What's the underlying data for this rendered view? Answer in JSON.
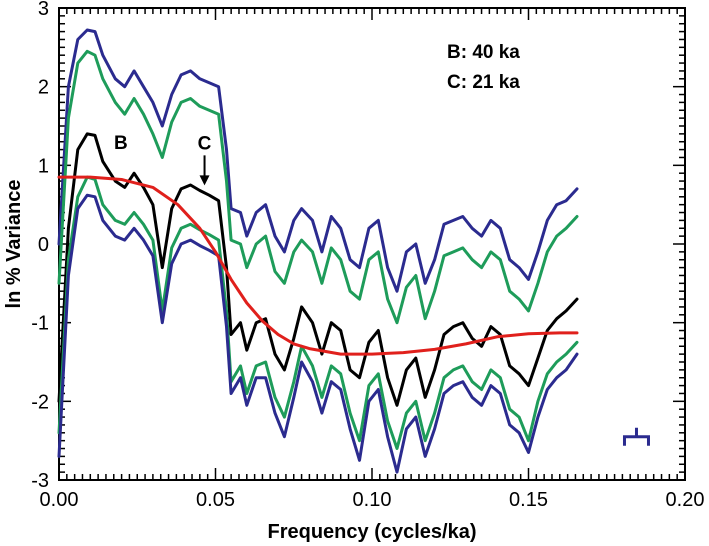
{
  "chart_data": {
    "type": "line",
    "xlabel": "Frequency (cycles/ka)",
    "ylabel": "ln % Variance",
    "xlim": [
      0,
      0.2
    ],
    "ylim": [
      -3,
      3
    ],
    "x_ticks": [
      "0.00",
      "0.05",
      "0.10",
      "0.15",
      "0.20"
    ],
    "y_ticks": [
      "3",
      "2",
      "1",
      "0",
      "-1",
      "-2",
      "-3"
    ],
    "legend_text": [
      "B: 40 ka",
      "C: 21 ka"
    ],
    "annotations": [
      {
        "label": "B",
        "x": 0.0255,
        "y": 0.9
      },
      {
        "label": "C",
        "x": 0.0465,
        "y": 0.72
      }
    ],
    "colors": {
      "spectrum": "#000000",
      "ci80": "#1e9c5a",
      "ci95": "#2b2b8f",
      "red_noise": "#e0201c"
    },
    "series": [
      {
        "color": "#2b2b8f",
        "x": [
          0.0,
          0.003,
          0.006,
          0.009,
          0.0115,
          0.014,
          0.018,
          0.021,
          0.024,
          0.027,
          0.03,
          0.033,
          0.036,
          0.039,
          0.042,
          0.045,
          0.048,
          0.051,
          0.0535,
          0.055,
          0.058,
          0.06,
          0.063,
          0.066,
          0.069,
          0.072,
          0.075,
          0.0775,
          0.081,
          0.084,
          0.087,
          0.09,
          0.093,
          0.096,
          0.099,
          0.102,
          0.105,
          0.108,
          0.111,
          0.114,
          0.117,
          0.12,
          0.123,
          0.126,
          0.129,
          0.132,
          0.135,
          0.138,
          0.141,
          0.144,
          0.147,
          0.15,
          0.153,
          0.156,
          0.159,
          0.162,
          0.1655
        ],
        "y": [
          0.0,
          2.0,
          2.6,
          2.72,
          2.7,
          2.4,
          2.1,
          2.0,
          2.2,
          2.0,
          1.8,
          1.5,
          1.9,
          2.15,
          2.2,
          2.1,
          2.05,
          2.0,
          1.2,
          0.45,
          0.4,
          0.1,
          0.4,
          0.5,
          0.1,
          -0.1,
          0.3,
          0.45,
          0.3,
          -0.1,
          0.35,
          0.2,
          -0.2,
          -0.3,
          0.2,
          0.3,
          -0.3,
          -0.6,
          -0.1,
          0.0,
          -0.5,
          -0.2,
          0.25,
          0.3,
          0.35,
          0.2,
          0.1,
          0.3,
          0.2,
          -0.2,
          -0.3,
          -0.45,
          -0.1,
          0.3,
          0.5,
          0.55,
          0.7
        ]
      },
      {
        "color": "#1e9c5a",
        "x": [
          0.0,
          0.003,
          0.006,
          0.009,
          0.0115,
          0.014,
          0.018,
          0.021,
          0.024,
          0.027,
          0.03,
          0.033,
          0.036,
          0.039,
          0.042,
          0.045,
          0.048,
          0.051,
          0.0535,
          0.055,
          0.058,
          0.06,
          0.063,
          0.066,
          0.069,
          0.072,
          0.075,
          0.0775,
          0.081,
          0.084,
          0.087,
          0.09,
          0.093,
          0.096,
          0.099,
          0.102,
          0.105,
          0.108,
          0.111,
          0.114,
          0.117,
          0.12,
          0.123,
          0.126,
          0.129,
          0.132,
          0.135,
          0.138,
          0.141,
          0.144,
          0.147,
          0.15,
          0.153,
          0.156,
          0.159,
          0.162,
          0.1655
        ],
        "y": [
          -0.5,
          1.6,
          2.3,
          2.45,
          2.4,
          2.1,
          1.8,
          1.65,
          1.85,
          1.65,
          1.4,
          1.1,
          1.55,
          1.8,
          1.85,
          1.75,
          1.7,
          1.65,
          0.8,
          0.05,
          0.0,
          -0.3,
          0.0,
          0.1,
          -0.35,
          -0.5,
          -0.1,
          0.05,
          -0.1,
          -0.5,
          -0.05,
          -0.2,
          -0.6,
          -0.7,
          -0.2,
          -0.1,
          -0.7,
          -1.0,
          -0.55,
          -0.4,
          -0.95,
          -0.6,
          -0.15,
          -0.1,
          -0.05,
          -0.2,
          -0.3,
          -0.1,
          -0.2,
          -0.6,
          -0.7,
          -0.85,
          -0.5,
          -0.1,
          0.1,
          0.2,
          0.35
        ]
      },
      {
        "color": "#000000",
        "x": [
          0.0,
          0.003,
          0.006,
          0.009,
          0.0115,
          0.014,
          0.018,
          0.021,
          0.024,
          0.027,
          0.03,
          0.033,
          0.036,
          0.039,
          0.042,
          0.045,
          0.048,
          0.051,
          0.0535,
          0.055,
          0.058,
          0.06,
          0.063,
          0.066,
          0.069,
          0.072,
          0.075,
          0.0775,
          0.081,
          0.084,
          0.087,
          0.09,
          0.093,
          0.096,
          0.099,
          0.102,
          0.105,
          0.108,
          0.111,
          0.114,
          0.117,
          0.12,
          0.123,
          0.126,
          0.129,
          0.132,
          0.135,
          0.138,
          0.141,
          0.144,
          0.147,
          0.15,
          0.153,
          0.156,
          0.159,
          0.162,
          0.1655
        ],
        "y": [
          -2.0,
          0.2,
          1.2,
          1.4,
          1.38,
          1.05,
          0.8,
          0.72,
          0.9,
          0.72,
          0.5,
          -0.3,
          0.45,
          0.7,
          0.75,
          0.68,
          0.62,
          0.55,
          -0.3,
          -1.15,
          -1.0,
          -1.35,
          -1.0,
          -0.95,
          -1.4,
          -1.6,
          -1.2,
          -0.8,
          -1.0,
          -1.4,
          -1.0,
          -1.1,
          -1.6,
          -1.7,
          -1.25,
          -1.1,
          -1.7,
          -2.05,
          -1.6,
          -1.45,
          -1.95,
          -1.6,
          -1.15,
          -1.05,
          -1.0,
          -1.2,
          -1.3,
          -1.05,
          -1.15,
          -1.55,
          -1.65,
          -1.8,
          -1.45,
          -1.1,
          -0.95,
          -0.85,
          -0.7
        ]
      },
      {
        "color": "#1e9c5a",
        "x": [
          0.0,
          0.003,
          0.006,
          0.009,
          0.0115,
          0.014,
          0.018,
          0.021,
          0.024,
          0.027,
          0.03,
          0.033,
          0.036,
          0.039,
          0.042,
          0.045,
          0.048,
          0.051,
          0.0535,
          0.055,
          0.058,
          0.06,
          0.063,
          0.066,
          0.069,
          0.072,
          0.075,
          0.0775,
          0.081,
          0.084,
          0.087,
          0.09,
          0.093,
          0.096,
          0.099,
          0.102,
          0.105,
          0.108,
          0.111,
          0.114,
          0.117,
          0.12,
          0.123,
          0.126,
          0.129,
          0.132,
          0.135,
          0.138,
          0.141,
          0.144,
          0.147,
          0.15,
          0.153,
          0.156,
          0.159,
          0.162,
          0.1655
        ],
        "y": [
          -2.4,
          -0.2,
          0.6,
          0.85,
          0.82,
          0.5,
          0.3,
          0.25,
          0.4,
          0.25,
          0.05,
          -0.85,
          -0.05,
          0.2,
          0.25,
          0.18,
          0.12,
          0.05,
          -0.85,
          -1.75,
          -1.55,
          -1.9,
          -1.55,
          -1.5,
          -1.95,
          -2.2,
          -1.75,
          -1.3,
          -1.55,
          -1.95,
          -1.55,
          -1.65,
          -2.15,
          -2.5,
          -1.8,
          -1.65,
          -2.25,
          -2.6,
          -2.15,
          -2.0,
          -2.5,
          -2.15,
          -1.7,
          -1.6,
          -1.55,
          -1.75,
          -1.85,
          -1.6,
          -1.7,
          -2.1,
          -2.2,
          -2.5,
          -2.0,
          -1.65,
          -1.5,
          -1.4,
          -1.25
        ]
      },
      {
        "color": "#2b2b8f",
        "x": [
          0.0,
          0.003,
          0.006,
          0.009,
          0.0115,
          0.014,
          0.018,
          0.021,
          0.024,
          0.027,
          0.03,
          0.033,
          0.036,
          0.039,
          0.042,
          0.045,
          0.048,
          0.051,
          0.0535,
          0.055,
          0.058,
          0.06,
          0.063,
          0.066,
          0.069,
          0.072,
          0.075,
          0.0775,
          0.081,
          0.084,
          0.087,
          0.09,
          0.093,
          0.096,
          0.099,
          0.102,
          0.105,
          0.108,
          0.111,
          0.114,
          0.117,
          0.12,
          0.123,
          0.126,
          0.129,
          0.132,
          0.135,
          0.138,
          0.141,
          0.144,
          0.147,
          0.15,
          0.153,
          0.156,
          0.159,
          0.162,
          0.1655
        ],
        "y": [
          -2.7,
          -0.4,
          0.45,
          0.62,
          0.6,
          0.3,
          0.1,
          0.05,
          0.2,
          0.05,
          -0.15,
          -1.0,
          -0.25,
          0.0,
          0.05,
          -0.02,
          -0.08,
          -0.15,
          -1.05,
          -1.9,
          -1.7,
          -2.05,
          -1.7,
          -1.7,
          -2.15,
          -2.45,
          -1.95,
          -1.5,
          -1.75,
          -2.15,
          -1.75,
          -1.85,
          -2.35,
          -2.75,
          -2.0,
          -1.85,
          -2.45,
          -2.9,
          -2.35,
          -2.2,
          -2.7,
          -2.35,
          -1.9,
          -1.8,
          -1.75,
          -1.95,
          -2.05,
          -1.8,
          -1.9,
          -2.3,
          -2.4,
          -2.65,
          -2.2,
          -1.85,
          -1.7,
          -1.6,
          -1.4
        ]
      },
      {
        "color": "#e0201c",
        "x": [
          0.0,
          0.01,
          0.02,
          0.03,
          0.038,
          0.045,
          0.05,
          0.055,
          0.06,
          0.065,
          0.07,
          0.075,
          0.08,
          0.09,
          0.1,
          0.11,
          0.12,
          0.13,
          0.14,
          0.15,
          0.16,
          0.1655
        ],
        "y": [
          0.85,
          0.85,
          0.82,
          0.72,
          0.5,
          0.2,
          -0.1,
          -0.45,
          -0.75,
          -0.98,
          -1.15,
          -1.27,
          -1.33,
          -1.4,
          -1.4,
          -1.38,
          -1.34,
          -1.27,
          -1.18,
          -1.14,
          -1.13,
          -1.13
        ]
      }
    ],
    "bandwidth_marker": {
      "x": 0.1845,
      "y": -2.45
    }
  }
}
